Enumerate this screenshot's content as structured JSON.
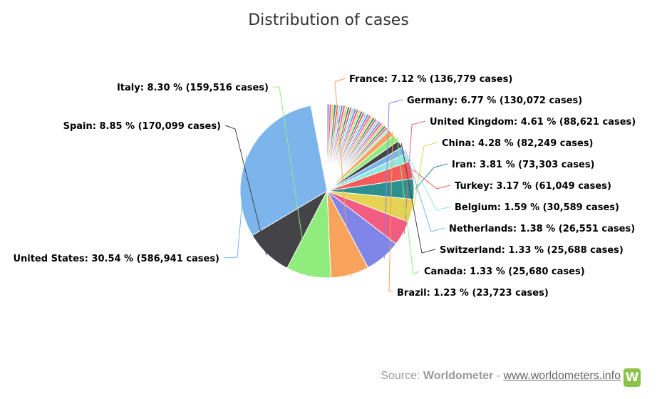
{
  "chart_data": {
    "type": "pie",
    "title": "Distribution of cases",
    "slices": [
      {
        "name": "United States",
        "percent": 30.54,
        "cases": "586,941",
        "color": "#7cb5ec",
        "label": "United States: 30.54 % (586,941 cases)"
      },
      {
        "name": "Spain",
        "percent": 8.85,
        "cases": "170,099",
        "color": "#434348",
        "label": "Spain: 8.85 % (170,099 cases)"
      },
      {
        "name": "Italy",
        "percent": 8.3,
        "cases": "159,516",
        "color": "#90ed7d",
        "label": "Italy: 8.30 % (159,516 cases)"
      },
      {
        "name": "France",
        "percent": 7.12,
        "cases": "136,779",
        "color": "#f7a35c",
        "label": "France: 7.12 % (136,779 cases)"
      },
      {
        "name": "Germany",
        "percent": 6.77,
        "cases": "130,072",
        "color": "#8085e9",
        "label": "Germany: 6.77 % (130,072 cases)"
      },
      {
        "name": "United Kingdom",
        "percent": 4.61,
        "cases": "88,621",
        "color": "#f15c80",
        "label": "United Kingdom: 4.61 % (88,621 cases)"
      },
      {
        "name": "China",
        "percent": 4.28,
        "cases": "82,249",
        "color": "#e4d354",
        "label": "China: 4.28 % (82,249 cases)"
      },
      {
        "name": "Iran",
        "percent": 3.81,
        "cases": "73,303",
        "color": "#2b908f",
        "label": "Iran: 3.81 % (73,303 cases)"
      },
      {
        "name": "Turkey",
        "percent": 3.17,
        "cases": "61,049",
        "color": "#f45b5b",
        "label": "Turkey: 3.17 % (61,049 cases)"
      },
      {
        "name": "Belgium",
        "percent": 1.59,
        "cases": "30,589",
        "color": "#91e8e1",
        "label": "Belgium: 1.59 % (30,589 cases)"
      },
      {
        "name": "Netherlands",
        "percent": 1.38,
        "cases": "26,551",
        "color": "#7cb5ec",
        "label": "Netherlands: 1.38 % (26,551 cases)"
      },
      {
        "name": "Switzerland",
        "percent": 1.33,
        "cases": "25,688",
        "color": "#434348",
        "label": "Switzerland: 1.33 % (25,688 cases)"
      },
      {
        "name": "Canada",
        "percent": 1.33,
        "cases": "25,680",
        "color": "#90ed7d",
        "label": "Canada: 1.33 % (25,680 cases)"
      },
      {
        "name": "Brazil",
        "percent": 1.23,
        "cases": "23,723",
        "color": "#f7a35c",
        "label": "Brazil: 1.23 % (23,723 cases)"
      }
    ],
    "other_slices_total_percent": 12.69,
    "other_slice_colors": [
      "#8085e9",
      "#f15c80",
      "#e4d354",
      "#2b908f",
      "#f45b5b",
      "#91e8e1"
    ]
  },
  "credit": {
    "prefix": "Source: ",
    "source": "Worldometer",
    "separator": " - ",
    "link": "www.worldometers.info",
    "logo": "W"
  }
}
